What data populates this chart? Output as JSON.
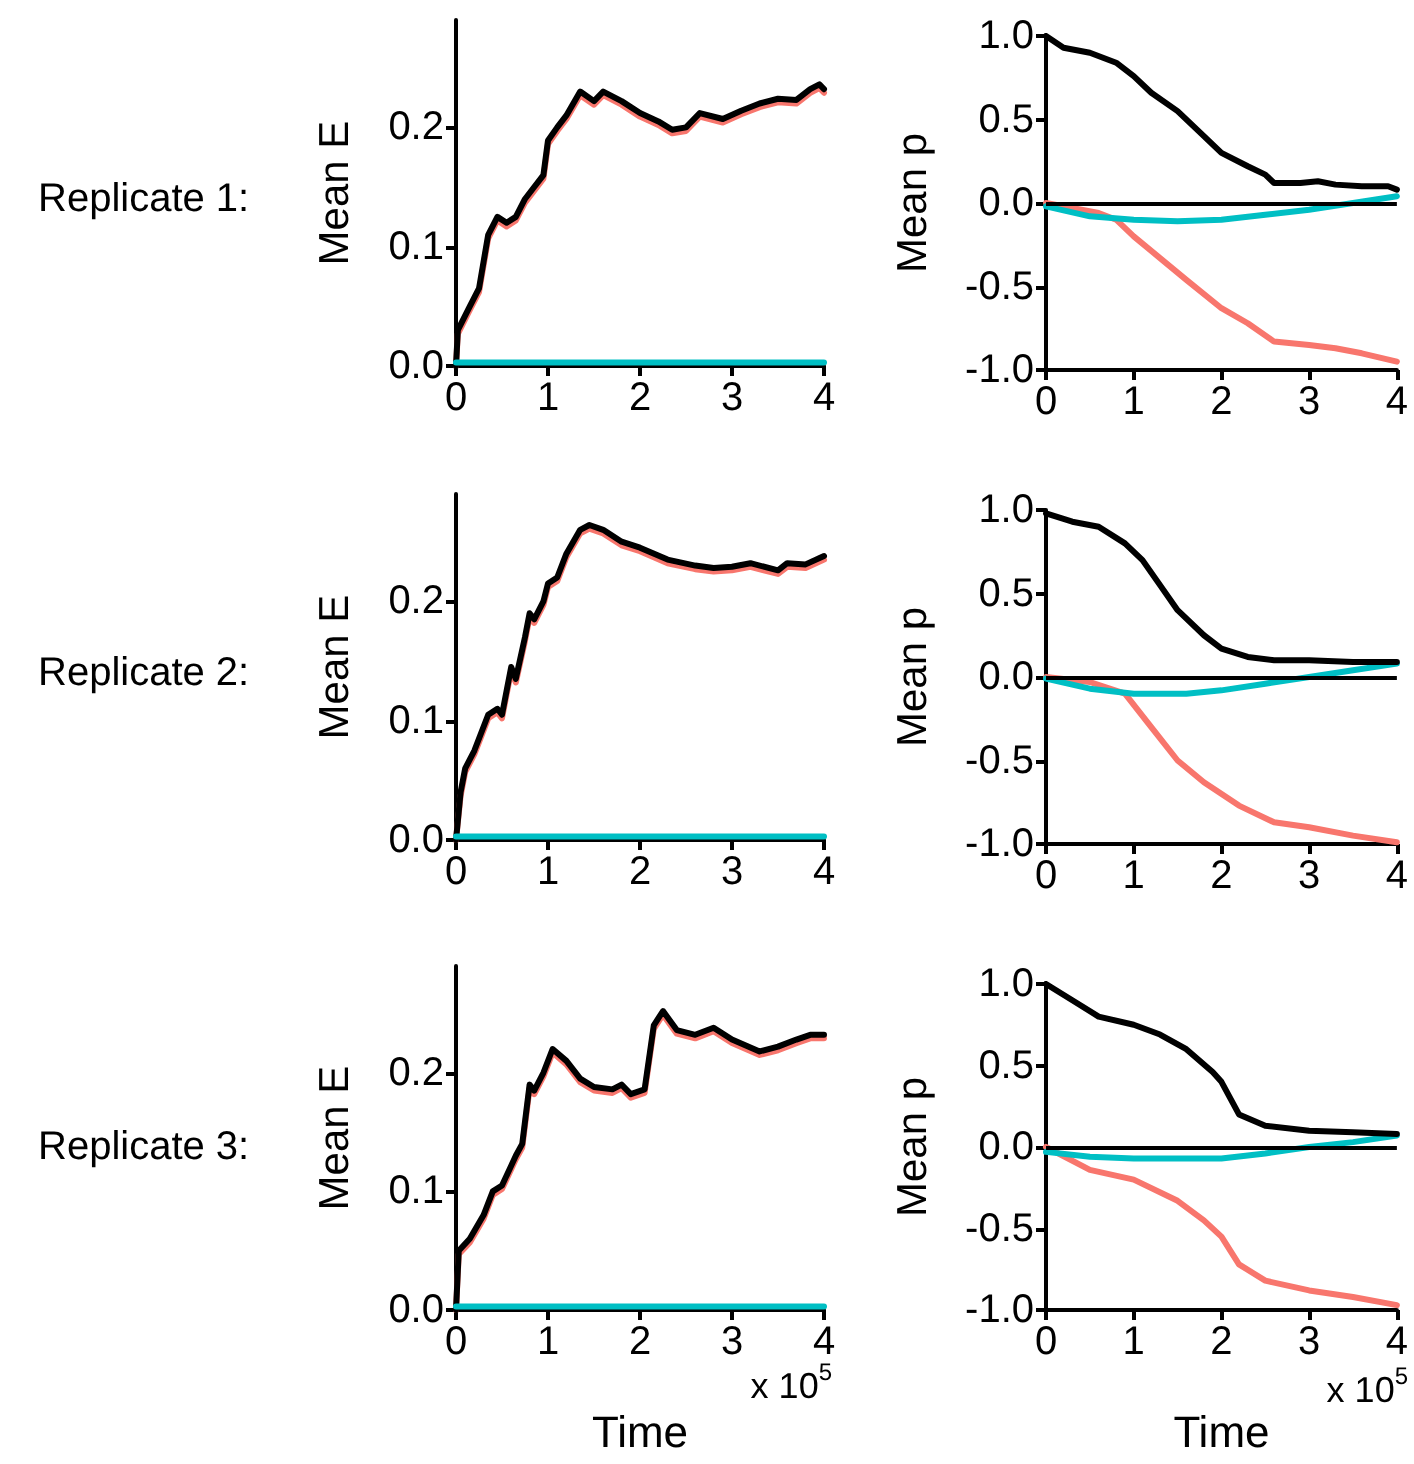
{
  "chart_data": [
    {
      "type": "line",
      "title": "Replicate 1:",
      "ylabel": "Mean E",
      "xlim": [
        0,
        4
      ],
      "xticks": [
        0,
        1,
        2,
        3,
        4
      ],
      "ylim": [
        0,
        0.29
      ],
      "yticks": [
        {
          "value": 0,
          "label": "0.0"
        },
        {
          "value": 0.1,
          "label": "0.1"
        },
        {
          "value": 0.2,
          "label": "0.2"
        }
      ],
      "grid": false,
      "marker": "none",
      "line_style": "solid",
      "series": [
        {
          "color": "#f8766d",
          "x": [
            0,
            0.02,
            0.15,
            0.25,
            0.35,
            0.45,
            0.55,
            0.65,
            0.75,
            0.85,
            0.95,
            1.0,
            1.1,
            1.2,
            1.35,
            1.5,
            1.6,
            1.8,
            2.0,
            2.2,
            2.35,
            2.5,
            2.65,
            2.9,
            3.1,
            3.3,
            3.5,
            3.7,
            3.85,
            3.95,
            4.0
          ],
          "values": [
            0,
            0.027,
            0.047,
            0.062,
            0.107,
            0.122,
            0.117,
            0.122,
            0.137,
            0.147,
            0.157,
            0.186,
            0.197,
            0.207,
            0.227,
            0.219,
            0.227,
            0.219,
            0.209,
            0.202,
            0.195,
            0.197,
            0.209,
            0.204,
            0.211,
            0.217,
            0.221,
            0.22,
            0.229,
            0.233,
            0.229
          ]
        },
        {
          "color": "#000000",
          "x": [
            0,
            0.02,
            0.15,
            0.25,
            0.35,
            0.45,
            0.55,
            0.65,
            0.75,
            0.85,
            0.95,
            1.0,
            1.1,
            1.2,
            1.35,
            1.5,
            1.6,
            1.8,
            2.0,
            2.2,
            2.35,
            2.5,
            2.65,
            2.9,
            3.1,
            3.3,
            3.5,
            3.7,
            3.85,
            3.95,
            4.0
          ],
          "values": [
            0,
            0.03,
            0.05,
            0.065,
            0.11,
            0.125,
            0.12,
            0.125,
            0.14,
            0.15,
            0.16,
            0.189,
            0.2,
            0.21,
            0.23,
            0.222,
            0.23,
            0.222,
            0.212,
            0.205,
            0.198,
            0.2,
            0.212,
            0.207,
            0.214,
            0.22,
            0.224,
            0.223,
            0.232,
            0.236,
            0.232
          ]
        },
        {
          "color": "#00bfc4",
          "x": [
            0,
            1,
            2,
            3,
            4
          ],
          "values": [
            0.003,
            0.003,
            0.003,
            0.003,
            0.003
          ]
        }
      ]
    },
    {
      "type": "line",
      "ylabel": "Mean p",
      "xlim": [
        0,
        4
      ],
      "xticks": [
        0,
        1,
        2,
        3,
        4
      ],
      "ylim": [
        -1,
        1
      ],
      "yticks": [
        {
          "value": -1,
          "label": "-1.0"
        },
        {
          "value": -0.5,
          "label": "-0.5"
        },
        {
          "value": 0,
          "label": "0.0"
        },
        {
          "value": 0.5,
          "label": "0.5"
        },
        {
          "value": 1,
          "label": "1.0"
        }
      ],
      "grid": false,
      "marker": "none",
      "line_style": "solid",
      "ref_lines": [
        {
          "axis": "y",
          "value": 0,
          "color": "#000000"
        }
      ],
      "series": [
        {
          "color": "#f8766d",
          "x": [
            0,
            0.3,
            0.6,
            0.8,
            1.0,
            1.3,
            1.6,
            2.0,
            2.3,
            2.6,
            3.0,
            3.3,
            3.6,
            4.0
          ],
          "values": [
            0,
            -0.03,
            -0.06,
            -0.1,
            -0.2,
            -0.33,
            -0.46,
            -0.63,
            -0.72,
            -0.83,
            -0.85,
            -0.87,
            -0.9,
            -0.95
          ]
        },
        {
          "color": "#00bfc4",
          "x": [
            0,
            0.5,
            1.0,
            1.5,
            2.0,
            2.5,
            3.0,
            3.5,
            4.0
          ],
          "values": [
            -0.02,
            -0.08,
            -0.1,
            -0.11,
            -0.1,
            -0.07,
            -0.04,
            0,
            0.04
          ]
        },
        {
          "color": "#000000",
          "x": [
            0,
            0.2,
            0.5,
            0.8,
            1.0,
            1.2,
            1.5,
            1.8,
            2.0,
            2.3,
            2.5,
            2.6,
            2.9,
            3.1,
            3.3,
            3.6,
            3.9,
            4.0
          ],
          "values": [
            1.0,
            0.93,
            0.9,
            0.84,
            0.76,
            0.66,
            0.55,
            0.4,
            0.3,
            0.22,
            0.17,
            0.12,
            0.12,
            0.13,
            0.11,
            0.1,
            0.1,
            0.08
          ]
        }
      ]
    },
    {
      "type": "line",
      "title": "Replicate 2:",
      "ylabel": "Mean E",
      "xlim": [
        0,
        4
      ],
      "xticks": [
        0,
        1,
        2,
        3,
        4
      ],
      "ylim": [
        0,
        0.29
      ],
      "yticks": [
        {
          "value": 0,
          "label": "0.0"
        },
        {
          "value": 0.1,
          "label": "0.1"
        },
        {
          "value": 0.2,
          "label": "0.2"
        }
      ],
      "grid": false,
      "marker": "none",
      "line_style": "solid",
      "series": [
        {
          "color": "#f8766d",
          "x": [
            0,
            0.05,
            0.1,
            0.2,
            0.35,
            0.45,
            0.5,
            0.55,
            0.6,
            0.65,
            0.75,
            0.8,
            0.85,
            0.95,
            1.0,
            1.1,
            1.2,
            1.35,
            1.45,
            1.6,
            1.8,
            2.0,
            2.3,
            2.6,
            2.8,
            3.0,
            3.2,
            3.5,
            3.6,
            3.8,
            4.0
          ],
          "values": [
            0,
            0.037,
            0.057,
            0.072,
            0.102,
            0.107,
            0.102,
            0.122,
            0.142,
            0.132,
            0.167,
            0.187,
            0.182,
            0.197,
            0.212,
            0.217,
            0.237,
            0.257,
            0.261,
            0.257,
            0.247,
            0.242,
            0.232,
            0.227,
            0.225,
            0.226,
            0.229,
            0.223,
            0.229,
            0.228,
            0.235
          ]
        },
        {
          "color": "#000000",
          "x": [
            0,
            0.05,
            0.1,
            0.2,
            0.35,
            0.45,
            0.5,
            0.55,
            0.6,
            0.65,
            0.75,
            0.8,
            0.85,
            0.95,
            1.0,
            1.1,
            1.2,
            1.35,
            1.45,
            1.6,
            1.8,
            2.0,
            2.3,
            2.6,
            2.8,
            3.0,
            3.2,
            3.5,
            3.6,
            3.8,
            4.0
          ],
          "values": [
            0,
            0.04,
            0.06,
            0.075,
            0.105,
            0.11,
            0.105,
            0.125,
            0.145,
            0.135,
            0.17,
            0.19,
            0.185,
            0.2,
            0.215,
            0.22,
            0.24,
            0.26,
            0.264,
            0.26,
            0.25,
            0.245,
            0.235,
            0.23,
            0.228,
            0.229,
            0.232,
            0.226,
            0.232,
            0.231,
            0.238
          ]
        },
        {
          "color": "#00bfc4",
          "x": [
            0,
            1,
            2,
            3,
            4
          ],
          "values": [
            0.003,
            0.003,
            0.003,
            0.003,
            0.003
          ]
        }
      ]
    },
    {
      "type": "line",
      "ylabel": "Mean p",
      "xlim": [
        0,
        4
      ],
      "xticks": [
        0,
        1,
        2,
        3,
        4
      ],
      "ylim": [
        -1,
        1
      ],
      "yticks": [
        {
          "value": -1,
          "label": "-1.0"
        },
        {
          "value": -0.5,
          "label": "-0.5"
        },
        {
          "value": 0,
          "label": "0.0"
        },
        {
          "value": 0.5,
          "label": "0.5"
        },
        {
          "value": 1,
          "label": "1.0"
        }
      ],
      "grid": false,
      "marker": "none",
      "line_style": "solid",
      "ref_lines": [
        {
          "axis": "y",
          "value": 0,
          "color": "#000000"
        }
      ],
      "series": [
        {
          "color": "#f8766d",
          "x": [
            0,
            0.5,
            0.9,
            1.2,
            1.5,
            1.8,
            2.2,
            2.6,
            3.0,
            3.5,
            4.0
          ],
          "values": [
            0,
            -0.03,
            -0.1,
            -0.3,
            -0.5,
            -0.63,
            -0.77,
            -0.87,
            -0.9,
            -0.95,
            -0.99
          ]
        },
        {
          "color": "#00bfc4",
          "x": [
            0,
            0.5,
            1.0,
            1.6,
            2.0,
            2.5,
            3.0,
            3.5,
            4.0
          ],
          "values": [
            -0.01,
            -0.07,
            -0.1,
            -0.1,
            -0.08,
            -0.04,
            0,
            0.04,
            0.08
          ]
        },
        {
          "color": "#000000",
          "x": [
            0,
            0.3,
            0.6,
            0.9,
            1.1,
            1.3,
            1.5,
            1.8,
            2.0,
            2.3,
            2.6,
            3.0,
            3.5,
            4.0
          ],
          "values": [
            0.98,
            0.93,
            0.9,
            0.8,
            0.7,
            0.55,
            0.4,
            0.25,
            0.17,
            0.12,
            0.1,
            0.1,
            0.09,
            0.09
          ]
        }
      ]
    },
    {
      "type": "line",
      "title": "Replicate 3:",
      "xlabel": "Time",
      "ylabel": "Mean E",
      "annotations": [
        "x 10$^{5}$"
      ],
      "xlim": [
        0,
        4
      ],
      "xticks": [
        0,
        1,
        2,
        3,
        4
      ],
      "ylim": [
        0,
        0.29
      ],
      "yticks": [
        {
          "value": 0,
          "label": "0.0"
        },
        {
          "value": 0.1,
          "label": "0.1"
        },
        {
          "value": 0.2,
          "label": "0.2"
        }
      ],
      "grid": false,
      "marker": "none",
      "line_style": "solid",
      "series": [
        {
          "color": "#f8766d",
          "x": [
            0,
            0.03,
            0.15,
            0.3,
            0.4,
            0.5,
            0.65,
            0.72,
            0.8,
            0.85,
            0.95,
            1.05,
            1.2,
            1.35,
            1.5,
            1.7,
            1.8,
            1.9,
            2.05,
            2.15,
            2.25,
            2.4,
            2.6,
            2.8,
            3.0,
            3.3,
            3.5,
            3.7,
            3.85,
            4.0
          ],
          "values": [
            0,
            0.047,
            0.057,
            0.077,
            0.097,
            0.102,
            0.127,
            0.137,
            0.187,
            0.182,
            0.197,
            0.217,
            0.207,
            0.192,
            0.185,
            0.183,
            0.187,
            0.179,
            0.183,
            0.237,
            0.249,
            0.233,
            0.229,
            0.235,
            0.225,
            0.215,
            0.219,
            0.225,
            0.229,
            0.229
          ]
        },
        {
          "color": "#000000",
          "x": [
            0,
            0.03,
            0.15,
            0.3,
            0.4,
            0.5,
            0.65,
            0.72,
            0.8,
            0.85,
            0.95,
            1.05,
            1.2,
            1.35,
            1.5,
            1.7,
            1.8,
            1.9,
            2.05,
            2.15,
            2.25,
            2.4,
            2.6,
            2.8,
            3.0,
            3.3,
            3.5,
            3.7,
            3.85,
            4.0
          ],
          "values": [
            0,
            0.05,
            0.06,
            0.08,
            0.1,
            0.105,
            0.13,
            0.14,
            0.19,
            0.185,
            0.2,
            0.22,
            0.21,
            0.195,
            0.188,
            0.186,
            0.19,
            0.182,
            0.186,
            0.24,
            0.252,
            0.236,
            0.232,
            0.238,
            0.228,
            0.218,
            0.222,
            0.228,
            0.232,
            0.232
          ]
        },
        {
          "color": "#00bfc4",
          "x": [
            0,
            1,
            2,
            3,
            4
          ],
          "values": [
            0.003,
            0.003,
            0.003,
            0.003,
            0.003
          ]
        }
      ]
    },
    {
      "type": "line",
      "xlabel": "Time",
      "ylabel": "Mean p",
      "annotations": [
        "x 10$^{5}$"
      ],
      "xlim": [
        0,
        4
      ],
      "xticks": [
        0,
        1,
        2,
        3,
        4
      ],
      "ylim": [
        -1,
        1
      ],
      "yticks": [
        {
          "value": -1,
          "label": "-1.0"
        },
        {
          "value": -0.5,
          "label": "-0.5"
        },
        {
          "value": 0,
          "label": "0.0"
        },
        {
          "value": 0.5,
          "label": "0.5"
        },
        {
          "value": 1,
          "label": "1.0"
        }
      ],
      "grid": false,
      "marker": "none",
      "line_style": "solid",
      "ref_lines": [
        {
          "axis": "y",
          "value": 0,
          "color": "#000000"
        }
      ],
      "series": [
        {
          "color": "#f8766d",
          "x": [
            0,
            0.5,
            1.0,
            1.5,
            1.8,
            2.0,
            2.2,
            2.5,
            3.0,
            3.5,
            4.0
          ],
          "values": [
            0,
            -0.14,
            -0.2,
            -0.33,
            -0.45,
            -0.55,
            -0.72,
            -0.82,
            -0.88,
            -0.92,
            -0.97
          ]
        },
        {
          "color": "#00bfc4",
          "x": [
            0,
            0.5,
            1.0,
            1.5,
            2.0,
            2.5,
            3.0,
            3.5,
            4.0
          ],
          "values": [
            -0.03,
            -0.06,
            -0.07,
            -0.07,
            -0.07,
            -0.04,
            0,
            0.03,
            0.07
          ]
        },
        {
          "color": "#000000",
          "x": [
            0,
            0.3,
            0.6,
            1.0,
            1.3,
            1.6,
            1.9,
            2.0,
            2.1,
            2.2,
            2.5,
            3.0,
            3.5,
            4.0
          ],
          "values": [
            1.0,
            0.9,
            0.8,
            0.75,
            0.69,
            0.6,
            0.46,
            0.4,
            0.3,
            0.2,
            0.13,
            0.1,
            0.09,
            0.08
          ]
        }
      ]
    }
  ]
}
